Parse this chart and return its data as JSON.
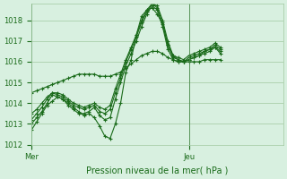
{
  "title": "",
  "xlabel": "Pression niveau de la mer( hPa )",
  "ylabel": "",
  "background_color": "#d8f0e0",
  "plot_bg_color": "#d8f0e0",
  "grid_color": "#a0c8a0",
  "line_color": "#1a6b1a",
  "marker_color": "#1a6b1a",
  "ylim": [
    1012,
    1018.8
  ],
  "xlim": [
    0,
    48
  ],
  "yticks": [
    1012,
    1013,
    1014,
    1015,
    1016,
    1017,
    1018
  ],
  "xtick_labels": [
    "Mer",
    "Jeu"
  ],
  "xtick_positions": [
    0,
    30
  ],
  "vlines": [
    0,
    30
  ],
  "series": [
    [
      1012.7,
      1013.1,
      1013.5,
      1013.9,
      1014.1,
      1014.3,
      1014.2,
      1014.0,
      1013.8,
      1013.6,
      1013.4,
      1013.5,
      1013.3,
      1012.9,
      1012.4,
      1012.3,
      1013.0,
      1014.0,
      1015.5,
      1016.1,
      1017.3,
      1018.2,
      1018.5,
      1018.6,
      1018.3,
      1017.8,
      1016.8,
      1016.3,
      1016.1,
      1016.0,
      1016.1,
      1016.2,
      1016.3,
      1016.5,
      1016.6,
      1016.7,
      1016.4
    ],
    [
      1013.0,
      1013.3,
      1013.6,
      1014.0,
      1014.4,
      1014.3,
      1014.2,
      1013.9,
      1013.7,
      1013.5,
      1013.5,
      1013.6,
      1013.8,
      1013.4,
      1013.2,
      1013.3,
      1014.2,
      1015.0,
      1015.8,
      1016.4,
      1017.0,
      1017.7,
      1018.3,
      1018.7,
      1018.5,
      1017.7,
      1016.6,
      1016.1,
      1016.0,
      1016.0,
      1016.1,
      1016.2,
      1016.3,
      1016.4,
      1016.5,
      1016.7,
      1016.5
    ],
    [
      1013.2,
      1013.5,
      1013.8,
      1014.2,
      1014.5,
      1014.4,
      1014.3,
      1014.1,
      1013.9,
      1013.8,
      1013.7,
      1013.8,
      1013.9,
      1013.6,
      1013.5,
      1013.7,
      1014.5,
      1015.2,
      1016.0,
      1016.6,
      1017.2,
      1017.9,
      1018.4,
      1018.8,
      1018.6,
      1017.9,
      1016.8,
      1016.2,
      1016.1,
      1016.0,
      1016.2,
      1016.3,
      1016.4,
      1016.5,
      1016.6,
      1016.8,
      1016.6
    ],
    [
      1013.5,
      1013.7,
      1014.0,
      1014.3,
      1014.5,
      1014.5,
      1014.4,
      1014.2,
      1014.0,
      1013.9,
      1013.8,
      1013.9,
      1014.0,
      1013.8,
      1013.7,
      1013.9,
      1014.7,
      1015.4,
      1016.1,
      1016.7,
      1017.3,
      1018.0,
      1018.5,
      1018.8,
      1018.7,
      1018.0,
      1017.0,
      1016.3,
      1016.2,
      1016.1,
      1016.3,
      1016.4,
      1016.5,
      1016.6,
      1016.7,
      1016.9,
      1016.7
    ],
    [
      1014.5,
      1014.6,
      1014.7,
      1014.8,
      1014.9,
      1015.0,
      1015.1,
      1015.2,
      1015.3,
      1015.4,
      1015.4,
      1015.4,
      1015.4,
      1015.3,
      1015.3,
      1015.3,
      1015.4,
      1015.5,
      1015.7,
      1015.9,
      1016.1,
      1016.3,
      1016.4,
      1016.5,
      1016.5,
      1016.4,
      1016.2,
      1016.1,
      1016.0,
      1016.0,
      1016.0,
      1016.0,
      1016.0,
      1016.1,
      1016.1,
      1016.1,
      1016.1
    ]
  ]
}
